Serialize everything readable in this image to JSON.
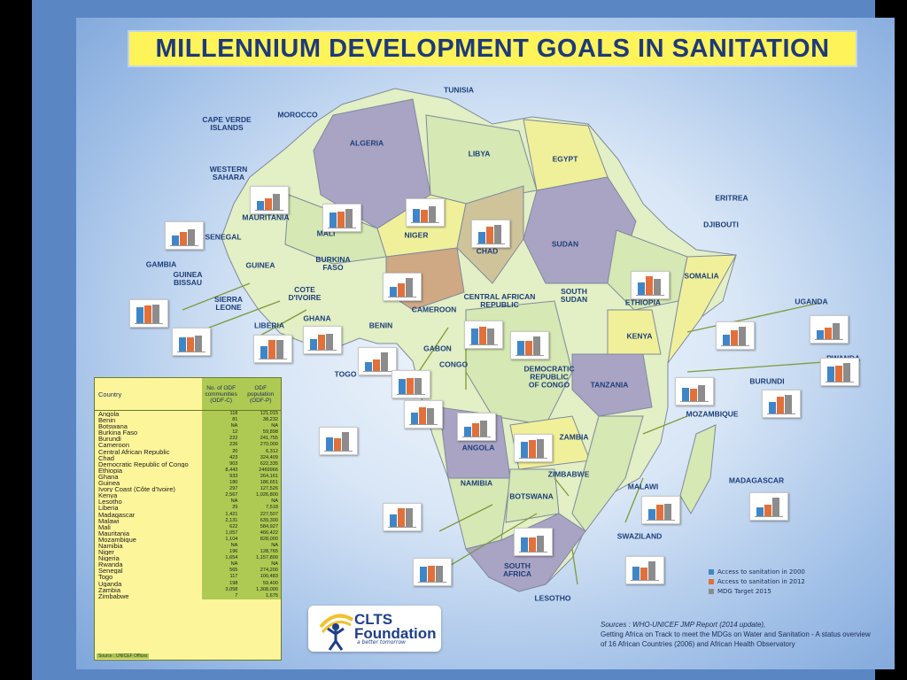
{
  "title": "MILLENNIUM DEVELOPMENT GOALS IN SANITATION",
  "countries": [
    {
      "name": "TUNISIA"
    },
    {
      "name": "MOROCCO"
    },
    {
      "name": "CAPE VERDE\nISLANDS"
    },
    {
      "name": "ALGERIA"
    },
    {
      "name": "LIBYA"
    },
    {
      "name": "EGYPT"
    },
    {
      "name": "WESTERN\nSAHARA"
    },
    {
      "name": "MAURITANIA"
    },
    {
      "name": "MALI"
    },
    {
      "name": "NIGER"
    },
    {
      "name": "CHAD"
    },
    {
      "name": "SUDAN"
    },
    {
      "name": "ERITREA"
    },
    {
      "name": "DJIBOUTI"
    },
    {
      "name": "SENEGAL"
    },
    {
      "name": "GAMBIA"
    },
    {
      "name": "GUINEA\nBISSAU"
    },
    {
      "name": "GUINEA"
    },
    {
      "name": "BURKINA\nFASO"
    },
    {
      "name": "SIERRA\nLEONE"
    },
    {
      "name": "COTE\nD'IVOIRE"
    },
    {
      "name": "NIGERIA"
    },
    {
      "name": "CENTRAL AFRICAN\nREPUBLIC"
    },
    {
      "name": "SOUTH\nSUDAN"
    },
    {
      "name": "ETHIOPIA"
    },
    {
      "name": "SOMALIA"
    },
    {
      "name": "UGANDA"
    },
    {
      "name": "LIBERIA"
    },
    {
      "name": "GHANA"
    },
    {
      "name": "BENIN"
    },
    {
      "name": "CAMEROON"
    },
    {
      "name": "KENYA"
    },
    {
      "name": "RWANDA"
    },
    {
      "name": "TOGO"
    },
    {
      "name": "GABON"
    },
    {
      "name": "CONGO"
    },
    {
      "name": "DEMOCRATIC\nREPUBLIC\nOF CONGO"
    },
    {
      "name": "TANZANIA"
    },
    {
      "name": "BURUNDI"
    },
    {
      "name": "MOZAMBIQUE"
    },
    {
      "name": "ANGOLA"
    },
    {
      "name": "ZAMBIA"
    },
    {
      "name": "ZIMBABWE"
    },
    {
      "name": "NAMIBIA"
    },
    {
      "name": "BOTSWANA"
    },
    {
      "name": "MALAWI"
    },
    {
      "name": "MADAGASCAR"
    },
    {
      "name": "SWAZILAND"
    },
    {
      "name": "SOUTH\nAFRICA"
    },
    {
      "name": "LESOTHO"
    }
  ],
  "table": {
    "headers": [
      "Country",
      "No. of ODF\ncommunities\n(ODF-C)",
      "ODF\npopulation\n(ODF-P)"
    ],
    "rows": [
      [
        "Angola",
        "118",
        "121,015"
      ],
      [
        "Benin",
        "81",
        "38,232"
      ],
      [
        "Botswana",
        "NA",
        "NA"
      ],
      [
        "Burkina Faso",
        "12",
        "59,898"
      ],
      [
        "Burundi",
        "222",
        "241,755"
      ],
      [
        "Cameroon",
        "226",
        "270,000"
      ],
      [
        "Central African Republic",
        "20",
        "6,312"
      ],
      [
        "Chad",
        "423",
        "324,409"
      ],
      [
        "Democratic Republic of Congo",
        "903",
        "622,335"
      ],
      [
        "Ethiopia",
        "8,443",
        "2469966"
      ],
      [
        "Ghana",
        "933",
        "264,161"
      ],
      [
        "Guinea",
        "180",
        "186,651"
      ],
      [
        "Ivory Coast (Côte d'Ivoire)",
        "297",
        "127,526"
      ],
      [
        "Kenya",
        "2,567",
        "1,026,800"
      ],
      [
        "Lesotho",
        "NA",
        "NA"
      ],
      [
        "Liberia",
        "29",
        "7,518"
      ],
      [
        "Madagascar",
        "1,421",
        "227,507"
      ],
      [
        "Malawi",
        "2,131",
        "639,300"
      ],
      [
        "Mali",
        "622",
        "584,927"
      ],
      [
        "Mauritania",
        "1,057",
        "466,422"
      ],
      [
        "Mozambique",
        "1,104",
        "828,000"
      ],
      [
        "Namibia",
        "NA",
        "NA"
      ],
      [
        "Niger",
        "196",
        "128,765"
      ],
      [
        "Nigeria",
        "1,654",
        "1,157,800"
      ],
      [
        "Rwanda",
        "NA",
        "NA"
      ],
      [
        "Senegal",
        "565",
        "274,200"
      ],
      [
        "Togo",
        "117",
        "100,483"
      ],
      [
        "Uganda",
        "198",
        "59,400"
      ],
      [
        "Zambia",
        "3,058",
        "1,308,000"
      ],
      [
        "Zimbabwe",
        "7",
        "1,675"
      ]
    ],
    "source": "Source : UNICEF Offices"
  },
  "legend": [
    {
      "label": "Access to sanitation in 2000",
      "color": "#3f86c8"
    },
    {
      "label": "Access to sanitation in 2012",
      "color": "#e2703a"
    },
    {
      "label": "MDG Target 2015",
      "color": "#8c8c8c"
    }
  ],
  "logo": {
    "name": "CLTS\nFoundation",
    "tagline": "a better tomorrow"
  },
  "sources": {
    "line1": "Sources : WHO-UNICEF JMP Report (2014 update),",
    "line2": "Getting Africa on Track to meet the MDGs on Water and Sanitation - A status overview of 16 African Countries (2006) and African Health Observatory"
  }
}
